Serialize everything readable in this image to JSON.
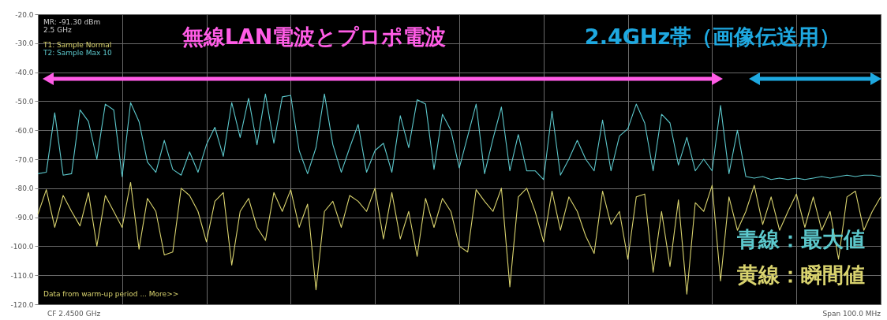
{
  "chart_data": {
    "type": "line",
    "categories": [
      null,
      null,
      null,
      null,
      null,
      null,
      null,
      null,
      null,
      null,
      null,
      null,
      null,
      null,
      null,
      null,
      null,
      null,
      null,
      null,
      null,
      null,
      null,
      null,
      null,
      null,
      null,
      null,
      null,
      null,
      null,
      null,
      null,
      null,
      null,
      null,
      null,
      null,
      null,
      null,
      null,
      null,
      null,
      null,
      null,
      null,
      null,
      null,
      null,
      null,
      null,
      null,
      null,
      null,
      null,
      null,
      null,
      null,
      null,
      null,
      null,
      null,
      null,
      null,
      null,
      null,
      null,
      null,
      null,
      null,
      null,
      null,
      null,
      null,
      null,
      null,
      null,
      null,
      null,
      null,
      null,
      null,
      null,
      null,
      null,
      null,
      null,
      null,
      null,
      null,
      null,
      null,
      null,
      null,
      null,
      null,
      null,
      null,
      null,
      null,
      null
    ],
    "ylim": [
      -120,
      -20
    ],
    "yticks": [
      {
        "value": -120,
        "label": "-120.0"
      },
      {
        "value": -110,
        "label": "-110.0"
      },
      {
        "value": -100,
        "label": "-100.0"
      },
      {
        "value": -90,
        "label": "-90.0"
      },
      {
        "value": -80,
        "label": "-80.0"
      },
      {
        "value": -70,
        "label": "-70.0"
      },
      {
        "value": -60,
        "label": "-60.0"
      },
      {
        "value": -50,
        "label": "-50.0"
      },
      {
        "value": -40,
        "label": "-40.0"
      },
      {
        "value": -30,
        "label": "-30.0"
      },
      {
        "value": -20,
        "label": "-20.0"
      }
    ],
    "tick_labels": "y",
    "grid": true,
    "line_style": "solid",
    "series": [
      {
        "name": "青線：最大値",
        "color": "#5cc8cc",
        "values": [
          -75,
          -74.5,
          -54,
          -75.5,
          -75,
          -53,
          -57,
          -70,
          -51,
          -53,
          -76,
          -50.5,
          -57,
          -71,
          -74.5,
          -63.5,
          -73.5,
          -75.5,
          -67.5,
          -74.5,
          -65,
          -59,
          -69,
          -50.5,
          -62.5,
          -49,
          -65,
          -47.5,
          -64.5,
          -48.5,
          -48,
          -67,
          -75,
          -66,
          -47.5,
          -65,
          -74.5,
          -66,
          -58,
          -74.5,
          -67,
          -64.5,
          -74.5,
          -55,
          -66,
          -49.5,
          -51,
          -73.5,
          -54.5,
          -60,
          -73,
          -62,
          -51,
          -75,
          -63,
          -52,
          -74,
          -61.5,
          -74,
          -74,
          -77,
          -53.5,
          -75.5,
          -70,
          -63.5,
          -70,
          -74,
          -56.5,
          -74,
          -62,
          -59.5,
          -51,
          -57.5,
          -74,
          -54.5,
          -57.5,
          -72,
          -62.5,
          -74,
          -70,
          -74,
          -51.5,
          -75,
          -60,
          -76,
          -76.5,
          -76,
          -77,
          -76.5,
          -77,
          -76.5,
          -77,
          -76.5,
          -76,
          -76.5,
          -76,
          -75.5,
          -76,
          -75.5,
          -75.5,
          -76
        ]
      },
      {
        "name": "黄線：瞬間値",
        "color": "#d9d36e",
        "values": [
          -89,
          -80.5,
          -93.5,
          -82.5,
          -88,
          -93,
          -81.5,
          -100,
          -82.5,
          -88,
          -93.5,
          -78,
          -101,
          -83.5,
          -88,
          -103,
          -102,
          -80,
          -82.5,
          -88,
          -98.5,
          -84.5,
          -81.5,
          -106.5,
          -88,
          -83.5,
          -93.5,
          -98,
          -81.5,
          -88,
          -80.5,
          -93.5,
          -85.5,
          -115,
          -88,
          -84.5,
          -93.5,
          -82.5,
          -84.5,
          -88,
          -80,
          -97.5,
          -81.5,
          -97.5,
          -88,
          -103.5,
          -83.5,
          -93.5,
          -83.5,
          -88,
          -100,
          -102,
          -80.5,
          -84.5,
          -88,
          -80,
          -114,
          -83,
          -80,
          -88,
          -98.5,
          -81,
          -94.5,
          -83,
          -88,
          -96.5,
          -102.5,
          -81,
          -92.5,
          -88,
          -104.5,
          -83,
          -82,
          -109,
          -88,
          -107,
          -84,
          -116.5,
          -85,
          -88,
          -79,
          -112,
          -83,
          -94.5,
          -88,
          -79,
          -92.5,
          -83,
          -94.5,
          -88,
          -82,
          -93.5,
          -83,
          -94.5,
          -88,
          -104.5,
          -83,
          -81,
          -94.5,
          -88,
          -83
        ]
      }
    ],
    "annotations": [
      "無線LAN電波とプロポ電波",
      "2.4GHz帯（画像伝送用）",
      "MR: -91.30 dBm",
      "2.5 GHz",
      "T1: Sample Normal",
      "T2: Sample Max 10",
      "Data from warm-up period ... More>>",
      "CF 2.4500 GHz",
      "Span 100.0 MHz"
    ]
  }
}
